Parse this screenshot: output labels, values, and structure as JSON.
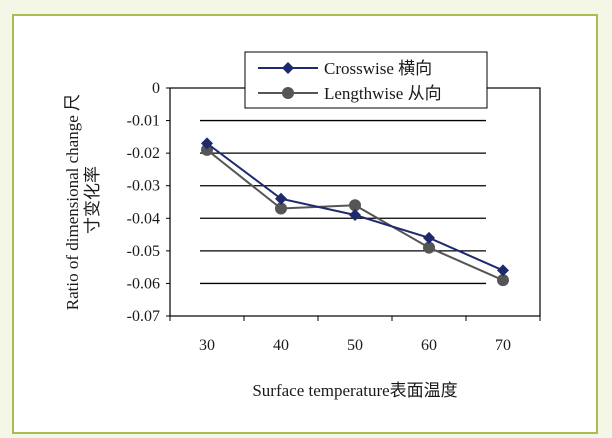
{
  "chart_data": {
    "type": "line",
    "title": "",
    "xlabel": "Surface temperature表面温度",
    "ylabel_line1": "Ratio of dimensional change 尺",
    "ylabel_line2": "寸变化率",
    "x": [
      30,
      40,
      50,
      60,
      70
    ],
    "x_tick_labels": [
      "30",
      "40",
      "50",
      "60",
      "70"
    ],
    "ylim": [
      -0.07,
      0
    ],
    "y_ticks": [
      0,
      -0.01,
      -0.02,
      -0.03,
      -0.04,
      -0.05,
      -0.06,
      -0.07
    ],
    "y_tick_labels": [
      "0",
      "-0.01",
      "-0.02",
      "-0.03",
      "-0.04",
      "-0.05",
      "-0.06",
      "-0.07"
    ],
    "grid": "horizontal",
    "legend_position": "top",
    "series": [
      {
        "name": "Crosswise 横向",
        "values": [
          -0.017,
          -0.034,
          -0.039,
          -0.046,
          -0.056
        ],
        "color": "#1f2a6e",
        "marker": "diamond"
      },
      {
        "name": "Lengthwise 从向",
        "values": [
          -0.019,
          -0.037,
          -0.036,
          -0.049,
          -0.059
        ],
        "color": "#555555",
        "marker": "circle"
      }
    ]
  }
}
